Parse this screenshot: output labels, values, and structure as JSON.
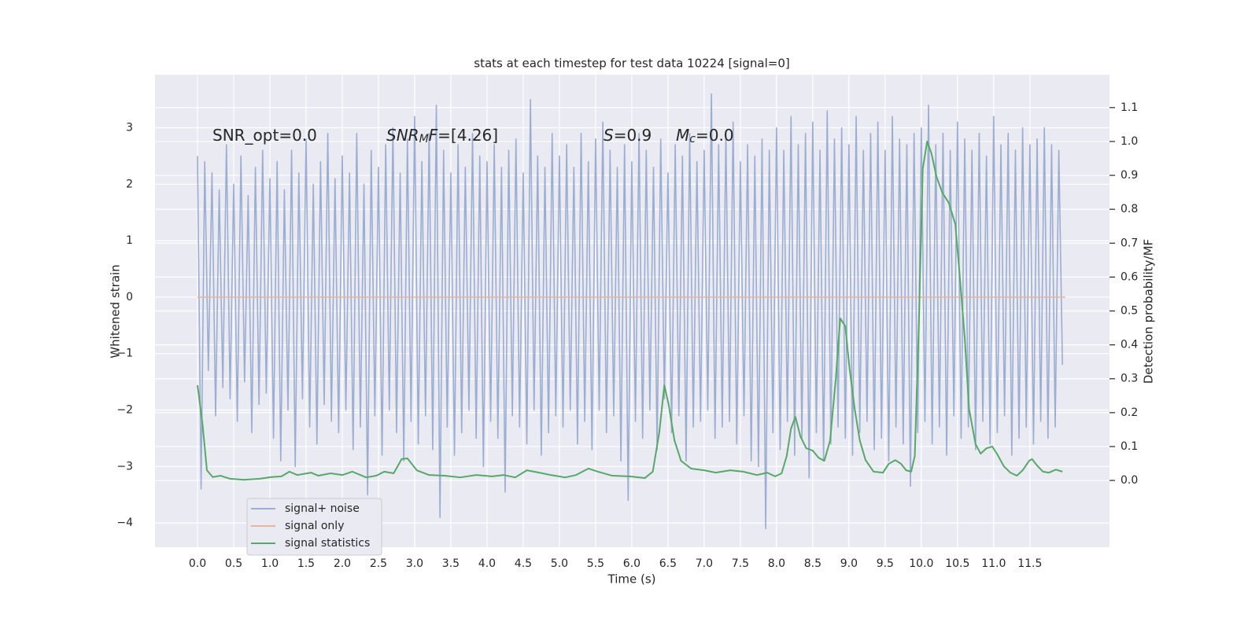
{
  "chart_data": {
    "type": "line",
    "title": "stats at each timestep for test data 10224 [signal=0]",
    "xlabel": "Time (s)",
    "ylabel": "Whitened strain",
    "y2label": "Detection probability/MF",
    "annotations": [
      [
        {
          "text": "SNR_opt=0.0"
        }
      ],
      [
        {
          "text": "SNR",
          "style": "italic"
        },
        {
          "text": "M",
          "style": "italic",
          "sub": true
        },
        {
          "text": "F",
          "style": "italic"
        },
        {
          "text": "=[4.26]"
        }
      ],
      [
        {
          "text": "S",
          "style": "italic"
        },
        {
          "text": "=0.9"
        }
      ],
      [
        {
          "text": "M",
          "style": "italic"
        },
        {
          "text": "c",
          "style": "italic",
          "sub": true
        },
        {
          "text": "=0.0"
        }
      ]
    ],
    "xlim": [
      -0.587,
      12.6
    ],
    "ylim": [
      -4.43,
      3.94
    ],
    "y2lim": [
      -0.197,
      1.197
    ],
    "xticks": [
      {
        "value": 0,
        "label": "0.0"
      },
      0.5,
      {
        "value": 1,
        "label": "1.0"
      },
      1.5,
      {
        "value": 2,
        "label": "2.0"
      },
      2.5,
      {
        "value": 3,
        "label": "3.0"
      },
      3.5,
      {
        "value": 4,
        "label": "4.0"
      },
      4.5,
      {
        "value": 5,
        "label": "5.0"
      },
      5.5,
      {
        "value": 6,
        "label": "6.0"
      },
      6.5,
      {
        "value": 7,
        "label": "7.0"
      },
      7.5,
      {
        "value": 8,
        "label": "8.0"
      },
      8.5,
      {
        "value": 9,
        "label": "9.0"
      },
      9.5,
      {
        "value": 10,
        "label": "10.0"
      },
      10.5,
      {
        "value": 11,
        "label": "11.0"
      },
      11.5
    ],
    "yticks": [
      {
        "value": -4,
        "label": "−4"
      },
      {
        "value": -3,
        "label": "−3"
      },
      {
        "value": -2,
        "label": "−2"
      },
      {
        "value": -1,
        "label": "−1"
      },
      0,
      1,
      2,
      3
    ],
    "y2ticks": [
      {
        "value": 0,
        "label": "0.0"
      },
      0.1,
      0.2,
      0.3,
      0.4,
      0.5,
      0.6,
      0.7,
      0.8,
      0.9,
      {
        "value": 1,
        "label": "1.0"
      },
      1.1
    ],
    "grid": true,
    "legend": "lower left",
    "series": [
      {
        "name": "signal+ noise",
        "color": "#9badd1",
        "x": [
          0,
          0.05,
          0.1,
          0.15,
          0.2,
          0.25,
          0.3,
          0.35,
          0.4,
          0.45,
          0.5,
          0.55,
          0.6,
          0.65,
          0.7,
          0.75,
          0.8,
          0.85,
          0.9,
          0.95,
          1,
          1.05,
          1.1,
          1.15,
          1.2,
          1.25,
          1.3,
          1.35,
          1.4,
          1.45,
          1.5,
          1.55,
          1.6,
          1.65,
          1.7,
          1.75,
          1.8,
          1.85,
          1.9,
          1.95,
          2,
          2.05,
          2.1,
          2.15,
          2.2,
          2.25,
          2.3,
          2.35,
          2.4,
          2.45,
          2.5,
          2.55,
          2.6,
          2.65,
          2.7,
          2.75,
          2.8,
          2.85,
          2.9,
          2.95,
          3,
          3.05,
          3.1,
          3.15,
          3.2,
          3.25,
          3.3,
          3.35,
          3.4,
          3.45,
          3.5,
          3.55,
          3.6,
          3.65,
          3.7,
          3.75,
          3.8,
          3.85,
          3.9,
          3.95,
          4,
          4.05,
          4.1,
          4.15,
          4.2,
          4.25,
          4.3,
          4.35,
          4.4,
          4.45,
          4.5,
          4.55,
          4.6,
          4.65,
          4.7,
          4.75,
          4.8,
          4.85,
          4.9,
          4.95,
          5,
          5.05,
          5.1,
          5.15,
          5.2,
          5.25,
          5.3,
          5.35,
          5.4,
          5.45,
          5.5,
          5.55,
          5.6,
          5.65,
          5.7,
          5.75,
          5.8,
          5.85,
          5.9,
          5.95,
          6,
          6.05,
          6.1,
          6.15,
          6.2,
          6.25,
          6.3,
          6.35,
          6.4,
          6.45,
          6.5,
          6.55,
          6.6,
          6.65,
          6.7,
          6.75,
          6.8,
          6.85,
          6.9,
          6.95,
          7,
          7.05,
          7.1,
          7.15,
          7.2,
          7.25,
          7.3,
          7.35,
          7.4,
          7.45,
          7.5,
          7.55,
          7.6,
          7.65,
          7.7,
          7.75,
          7.8,
          7.85,
          7.9,
          7.95,
          8,
          8.05,
          8.1,
          8.15,
          8.2,
          8.25,
          8.3,
          8.35,
          8.4,
          8.45,
          8.5,
          8.55,
          8.6,
          8.65,
          8.7,
          8.75,
          8.8,
          8.85,
          8.9,
          8.95,
          9,
          9.05,
          9.1,
          9.15,
          9.2,
          9.25,
          9.3,
          9.35,
          9.4,
          9.45,
          9.5,
          9.55,
          9.6,
          9.65,
          9.7,
          9.75,
          9.8,
          9.85,
          9.9,
          9.95,
          10,
          10.05,
          10.1,
          10.15,
          10.2,
          10.25,
          10.3,
          10.35,
          10.4,
          10.45,
          10.5,
          10.55,
          10.6,
          10.65,
          10.7,
          10.75,
          10.8,
          10.85,
          10.9,
          10.95,
          11,
          11.05,
          11.1,
          11.15,
          11.2,
          11.25,
          11.3,
          11.35,
          11.4,
          11.45,
          11.5,
          11.55,
          11.6,
          11.65,
          11.7,
          11.75,
          11.8,
          11.85,
          11.9,
          11.95
        ],
        "values": [
          2.5,
          -3.4,
          2.4,
          -1.3,
          2.2,
          -2.1,
          1.9,
          -1.6,
          2.7,
          -1.8,
          2.0,
          -2.2,
          2.5,
          -1.5,
          1.8,
          -2.4,
          2.3,
          -1.9,
          2.6,
          -1.7,
          2.1,
          -2.5,
          2.4,
          -2.9,
          1.9,
          -2.0,
          2.6,
          -3.0,
          2.2,
          -1.8,
          2.8,
          -2.3,
          2.0,
          -2.6,
          2.4,
          -1.9,
          2.9,
          -2.2,
          2.1,
          -2.4,
          2.5,
          -2.0,
          2.2,
          -2.7,
          2.9,
          -2.3,
          2.0,
          -3.5,
          2.6,
          -2.1,
          2.3,
          -2.8,
          2.7,
          -2.0,
          3.0,
          -2.4,
          2.2,
          -2.9,
          2.8,
          -2.2,
          3.2,
          -2.6,
          2.4,
          -2.1,
          2.9,
          -2.7,
          3.4,
          -3.9,
          2.6,
          -2.3,
          2.2,
          -2.8,
          2.7,
          -2.4,
          2.3,
          -2.0,
          2.9,
          -2.5,
          2.5,
          -3.0,
          2.4,
          -2.2,
          2.7,
          -2.5,
          2.3,
          -3.45,
          2.6,
          -2.1,
          2.8,
          -2.3,
          2.2,
          -2.6,
          3.5,
          -2.0,
          2.5,
          -2.8,
          2.3,
          -2.4,
          2.9,
          -2.1,
          2.5,
          -2.3,
          2.7,
          -2.0,
          2.3,
          -2.6,
          2.9,
          -2.2,
          2.4,
          -2.7,
          2.8,
          -2.0,
          3.1,
          -2.4,
          2.6,
          -2.1,
          2.3,
          -2.9,
          2.7,
          -3.6,
          2.4,
          -2.2,
          2.9,
          -2.5,
          2.6,
          -2.0,
          2.3,
          -2.7,
          2.8,
          -1.8,
          2.2,
          -2.4,
          2.7,
          -2.1,
          2.5,
          -2.9,
          2.9,
          -2.3,
          2.4,
          -2.2,
          2.6,
          -2.0,
          3.6,
          -2.5,
          2.7,
          -2.3,
          2.9,
          -2.2,
          3.1,
          -2.6,
          2.4,
          -2.1,
          2.7,
          -2.9,
          2.5,
          -3.0,
          2.8,
          -4.1,
          2.6,
          -2.4,
          3.0,
          -2.7,
          2.6,
          -2.2,
          3.2,
          -2.8,
          2.7,
          -2.5,
          2.9,
          -3.2,
          3.1,
          -2.4,
          2.6,
          -2.9,
          3.3,
          -2.6,
          2.8,
          -2.3,
          3.0,
          -2.5,
          2.7,
          -2.8,
          3.2,
          -2.4,
          2.6,
          -2.2,
          2.9,
          -2.7,
          3.1,
          -2.5,
          2.6,
          -2.9,
          3.2,
          -2.3,
          2.8,
          -2.6,
          2.7,
          -3.35,
          2.9,
          -2.4,
          3.0,
          -2.2,
          3.4,
          -2.6,
          2.7,
          -2.3,
          2.9,
          -2.8,
          2.6,
          -2.1,
          3.1,
          -2.5,
          2.8,
          -2.3,
          2.6,
          -2.7,
          2.9,
          -2.2,
          2.5,
          -2.6,
          3.2,
          -2.4,
          2.7,
          -2.1,
          2.9,
          -2.8,
          2.6,
          -2.5,
          3.0,
          -2.3,
          2.7,
          -2.6,
          2.8,
          -2.2,
          3.0,
          -2.5,
          2.7,
          -2.3,
          2.6,
          -1.2
        ]
      },
      {
        "name": "signal only",
        "color": "#e4b7a2",
        "x": [
          0,
          11.99
        ],
        "values": [
          0,
          0
        ]
      },
      {
        "name": "signal statistics",
        "color": "#55a868",
        "axis": "y2",
        "x": [
          0,
          0.07,
          0.13,
          0.21,
          0.32,
          0.45,
          0.64,
          0.86,
          1.02,
          1.16,
          1.27,
          1.38,
          1.57,
          1.67,
          1.84,
          2.0,
          2.14,
          2.33,
          2.47,
          2.58,
          2.71,
          2.82,
          2.9,
          3.03,
          3.2,
          3.41,
          3.63,
          3.85,
          4.07,
          4.23,
          4.39,
          4.55,
          4.72,
          4.88,
          5.08,
          5.23,
          5.4,
          5.53,
          5.73,
          5.97,
          6.18,
          6.29,
          6.38,
          6.45,
          6.51,
          6.59,
          6.68,
          6.82,
          7.0,
          7.16,
          7.36,
          7.54,
          7.73,
          7.87,
          7.98,
          8.07,
          8.14,
          8.2,
          8.26,
          8.33,
          8.41,
          8.5,
          8.58,
          8.66,
          8.74,
          8.82,
          8.88,
          8.95,
          9.01,
          9.08,
          9.15,
          9.23,
          9.34,
          9.47,
          9.55,
          9.64,
          9.72,
          9.79,
          9.86,
          9.91,
          9.97,
          10.02,
          10.08,
          10.14,
          10.21,
          10.29,
          10.38,
          10.47,
          10.53,
          10.6,
          10.66,
          10.75,
          10.82,
          10.9,
          10.98,
          11.05,
          11.14,
          11.23,
          11.32,
          11.4,
          11.49,
          11.53,
          11.6,
          11.68,
          11.76,
          11.86,
          11.95
        ],
        "values": [
          0.281,
          0.165,
          0.03,
          0.01,
          0.014,
          0.005,
          0.002,
          0.005,
          0.01,
          0.012,
          0.026,
          0.016,
          0.023,
          0.014,
          0.021,
          0.016,
          0.026,
          0.009,
          0.014,
          0.026,
          0.021,
          0.063,
          0.065,
          0.03,
          0.016,
          0.014,
          0.009,
          0.016,
          0.012,
          0.016,
          0.009,
          0.03,
          0.023,
          0.016,
          0.009,
          0.016,
          0.035,
          0.026,
          0.014,
          0.012,
          0.007,
          0.026,
          0.142,
          0.281,
          0.223,
          0.118,
          0.058,
          0.035,
          0.03,
          0.023,
          0.03,
          0.026,
          0.016,
          0.023,
          0.012,
          0.021,
          0.072,
          0.153,
          0.188,
          0.13,
          0.095,
          0.088,
          0.067,
          0.058,
          0.118,
          0.304,
          0.478,
          0.455,
          0.327,
          0.211,
          0.118,
          0.06,
          0.026,
          0.023,
          0.049,
          0.06,
          0.049,
          0.03,
          0.026,
          0.072,
          0.49,
          0.919,
          1.0,
          0.965,
          0.896,
          0.849,
          0.819,
          0.756,
          0.606,
          0.42,
          0.211,
          0.107,
          0.079,
          0.095,
          0.1,
          0.077,
          0.042,
          0.023,
          0.014,
          0.03,
          0.058,
          0.063,
          0.044,
          0.026,
          0.023,
          0.032,
          0.026
        ]
      }
    ]
  }
}
